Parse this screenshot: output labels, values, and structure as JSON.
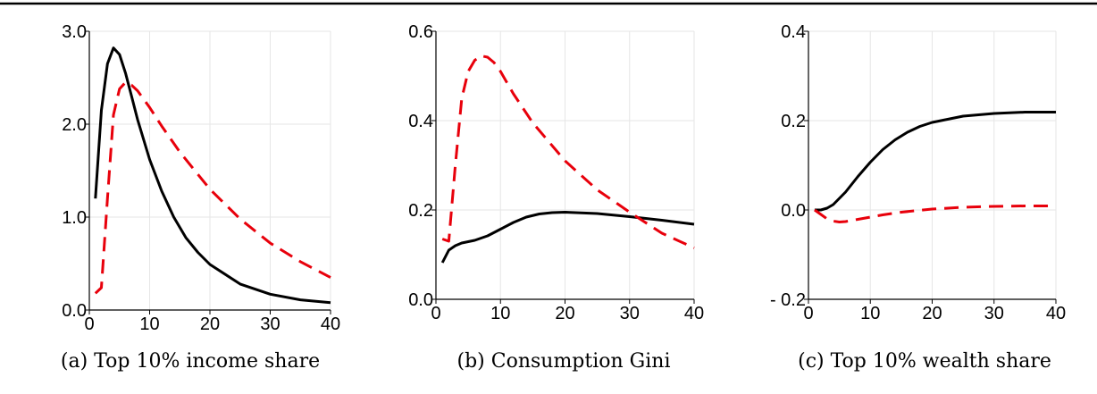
{
  "chart_data": [
    {
      "type": "line",
      "caption": "(a) Top 10% income share",
      "xlim": [
        0,
        40
      ],
      "ylim": [
        0,
        3.0
      ],
      "x_ticks": [
        0,
        10,
        20,
        30,
        40
      ],
      "x_tick_labels": [
        "0",
        "10",
        "20",
        "30",
        "40"
      ],
      "y_ticks": [
        0.0,
        1.0,
        2.0,
        3.0
      ],
      "y_tick_labels": [
        "0.0",
        "1.0",
        "2.0",
        "3.0"
      ],
      "grid": true,
      "series": [
        {
          "style": "solid",
          "color": "#000000",
          "x": [
            1,
            2,
            3,
            4,
            5,
            6,
            7,
            8,
            10,
            12,
            14,
            16,
            18,
            20,
            25,
            30,
            35,
            40
          ],
          "y": [
            1.2,
            2.15,
            2.65,
            2.82,
            2.75,
            2.55,
            2.3,
            2.05,
            1.62,
            1.28,
            1.0,
            0.78,
            0.62,
            0.49,
            0.28,
            0.17,
            0.11,
            0.08
          ]
        },
        {
          "style": "dashed",
          "color": "#e8000b",
          "x": [
            1,
            2,
            3,
            4,
            5,
            6,
            7,
            8,
            10,
            12,
            15,
            20,
            25,
            30,
            35,
            40
          ],
          "y": [
            0.18,
            0.24,
            1.2,
            2.1,
            2.38,
            2.45,
            2.42,
            2.36,
            2.18,
            1.98,
            1.7,
            1.3,
            0.98,
            0.72,
            0.52,
            0.35
          ]
        }
      ]
    },
    {
      "type": "line",
      "caption": "(b) Consumption Gini",
      "xlim": [
        0,
        40
      ],
      "ylim": [
        0,
        0.6
      ],
      "x_ticks": [
        0,
        10,
        20,
        30,
        40
      ],
      "x_tick_labels": [
        "0",
        "10",
        "20",
        "30",
        "40"
      ],
      "y_ticks": [
        0.0,
        0.2,
        0.4,
        0.6
      ],
      "y_tick_labels": [
        "0.0",
        "0.2",
        "0.4",
        "0.6"
      ],
      "grid": true,
      "series": [
        {
          "style": "solid",
          "color": "#000000",
          "x": [
            1,
            2,
            3,
            4,
            6,
            8,
            10,
            12,
            14,
            16,
            18,
            20,
            25,
            30,
            35,
            40
          ],
          "y": [
            0.082,
            0.11,
            0.12,
            0.126,
            0.132,
            0.142,
            0.157,
            0.172,
            0.184,
            0.191,
            0.194,
            0.195,
            0.192,
            0.185,
            0.177,
            0.168
          ]
        },
        {
          "style": "dashed",
          "color": "#e8000b",
          "x": [
            1,
            2,
            3,
            4,
            5,
            6,
            7,
            8,
            9,
            10,
            12,
            15,
            20,
            25,
            30,
            35,
            40
          ],
          "y": [
            0.135,
            0.13,
            0.3,
            0.45,
            0.51,
            0.535,
            0.545,
            0.542,
            0.53,
            0.51,
            0.46,
            0.395,
            0.31,
            0.245,
            0.195,
            0.148,
            0.115
          ]
        }
      ]
    },
    {
      "type": "line",
      "caption": "(c) Top 10% wealth share",
      "xlim": [
        0,
        40
      ],
      "ylim": [
        -0.2,
        0.4
      ],
      "x_ticks": [
        0,
        10,
        20,
        30,
        40
      ],
      "x_tick_labels": [
        "0",
        "10",
        "20",
        "30",
        "40"
      ],
      "y_ticks": [
        -0.2,
        0.0,
        0.2,
        0.4
      ],
      "y_tick_labels": [
        "- 0.2",
        "0.0",
        "0.2",
        "0.4"
      ],
      "grid": true,
      "series": [
        {
          "style": "solid",
          "color": "#000000",
          "x": [
            1,
            2,
            3,
            4,
            6,
            8,
            10,
            12,
            14,
            16,
            18,
            20,
            25,
            30,
            35,
            40
          ],
          "y": [
            0.0,
            0.0,
            0.004,
            0.012,
            0.04,
            0.075,
            0.107,
            0.135,
            0.157,
            0.174,
            0.187,
            0.196,
            0.21,
            0.216,
            0.219,
            0.219
          ]
        },
        {
          "style": "dashed",
          "color": "#e8000b",
          "x": [
            1,
            2,
            3,
            4,
            5,
            6,
            8,
            10,
            12,
            15,
            20,
            25,
            30,
            35,
            40
          ],
          "y": [
            0.0,
            -0.01,
            -0.02,
            -0.025,
            -0.027,
            -0.026,
            -0.021,
            -0.016,
            -0.011,
            -0.005,
            0.002,
            0.006,
            0.008,
            0.009,
            0.009
          ]
        }
      ]
    }
  ]
}
